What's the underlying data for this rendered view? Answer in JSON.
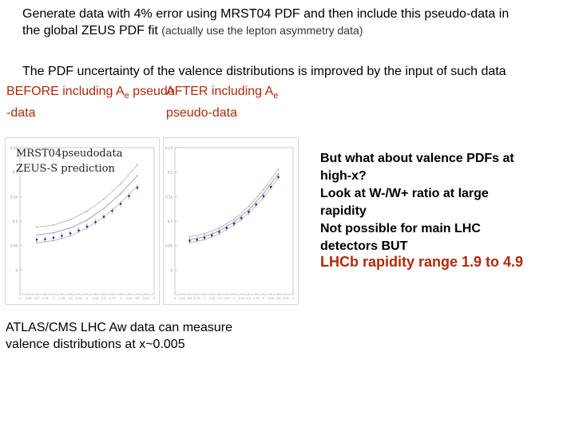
{
  "slide": {
    "para1_line1": "Generate data with 4% error using MRST04 PDF and then include this pseudo-data in",
    "para1_line2_main": "the global ZEUS PDF fit",
    "para1_line2_small": "(actually use the lepton asymmetry data)",
    "para2": "The PDF uncertainty of the valence distributions is improved by the input of such data",
    "before_label": "BEFORE including A",
    "before_sub": "e",
    "before_tail": " pseudo",
    "before_line2": "-data",
    "after_label": "AFTER including A",
    "after_sub": "e",
    "after_line2": "pseudo-data",
    "legend_line1": "MRST04pseudodata",
    "legend_line2": "ZEUS-S prediction",
    "right_lines": [
      "But what about valence PDFs at",
      "high-x?",
      "Look at W-/W+ ratio at large",
      "rapidity",
      "Not possible for main LHC",
      "detectors BUT"
    ],
    "lhcb_line": "LHCb rapidity range 1.9 to 4.9",
    "atlas_line1": "ATLAS/CMS LHC Aw data can measure",
    "atlas_line2": "valence distributions at x~0.005"
  },
  "chart_data": [
    {
      "type": "line",
      "panel": "before",
      "ylim": [
        -0.05,
        0.25
      ],
      "xlim": [
        0,
        4
      ],
      "y_tick_labels": [
        "0.25",
        "0.2",
        "0.15",
        "0.1",
        "0.05",
        "0"
      ],
      "x_tick_labels": [
        "0",
        "0.25",
        "0.5",
        "0.75",
        "1",
        "1.25",
        "1.5",
        "1.75",
        "2",
        "2.25",
        "2.5",
        "2.75",
        "3",
        "3.25",
        "3.5",
        "3.75",
        "4"
      ],
      "series": [
        {
          "x": [
            0.5,
            1.0,
            1.5,
            2.0,
            2.5,
            3.0,
            3.5
          ],
          "y": [
            0.088,
            0.092,
            0.103,
            0.12,
            0.145,
            0.176,
            0.215
          ]
        },
        {
          "x": [
            0.5,
            1.0,
            1.5,
            2.0,
            2.5,
            3.0,
            3.5
          ],
          "y": [
            0.072,
            0.076,
            0.086,
            0.102,
            0.126,
            0.156,
            0.193
          ]
        },
        {
          "x": [
            0.5,
            1.0,
            1.5,
            2.0,
            2.5,
            3.0,
            3.5
          ],
          "y": [
            0.056,
            0.06,
            0.07,
            0.086,
            0.108,
            0.137,
            0.172
          ]
        },
        {
          "x": [
            0.5,
            0.75,
            1.0,
            1.25,
            1.5,
            1.75,
            2.0,
            2.25,
            2.5,
            2.75,
            3.0,
            3.25,
            3.5
          ],
          "y": [
            0.062,
            0.063,
            0.066,
            0.07,
            0.075,
            0.081,
            0.089,
            0.098,
            0.109,
            0.121,
            0.135,
            0.151,
            0.168
          ]
        }
      ]
    },
    {
      "type": "line",
      "panel": "after",
      "ylim": [
        -0.05,
        0.25
      ],
      "xlim": [
        0,
        4
      ],
      "y_tick_labels": [
        "0.25",
        "0.2",
        "0.15",
        "0.1",
        "0.05",
        "0"
      ],
      "x_tick_labels": [
        "0",
        "0.25",
        "0.5",
        "0.75",
        "1",
        "1.25",
        "1.5",
        "1.75",
        "2",
        "2.25",
        "2.5",
        "2.75",
        "3",
        "3.25",
        "3.5",
        "3.75",
        "4"
      ],
      "series": [
        {
          "x": [
            0.5,
            1.0,
            1.5,
            2.0,
            2.5,
            3.0,
            3.5
          ],
          "y": [
            0.068,
            0.074,
            0.086,
            0.104,
            0.13,
            0.164,
            0.206
          ]
        },
        {
          "x": [
            0.5,
            1.0,
            1.5,
            2.0,
            2.5,
            3.0,
            3.5
          ],
          "y": [
            0.062,
            0.068,
            0.08,
            0.098,
            0.123,
            0.156,
            0.197
          ]
        },
        {
          "x": [
            0.5,
            1.0,
            1.5,
            2.0,
            2.5,
            3.0,
            3.5
          ],
          "y": [
            0.056,
            0.062,
            0.074,
            0.092,
            0.116,
            0.148,
            0.188
          ]
        },
        {
          "x": [
            0.5,
            0.75,
            1.0,
            1.25,
            1.5,
            1.75,
            2.0,
            2.25,
            2.5,
            2.75,
            3.0,
            3.25,
            3.5
          ],
          "y": [
            0.06,
            0.062,
            0.066,
            0.071,
            0.078,
            0.086,
            0.095,
            0.106,
            0.119,
            0.134,
            0.151,
            0.17,
            0.19
          ]
        }
      ]
    }
  ]
}
